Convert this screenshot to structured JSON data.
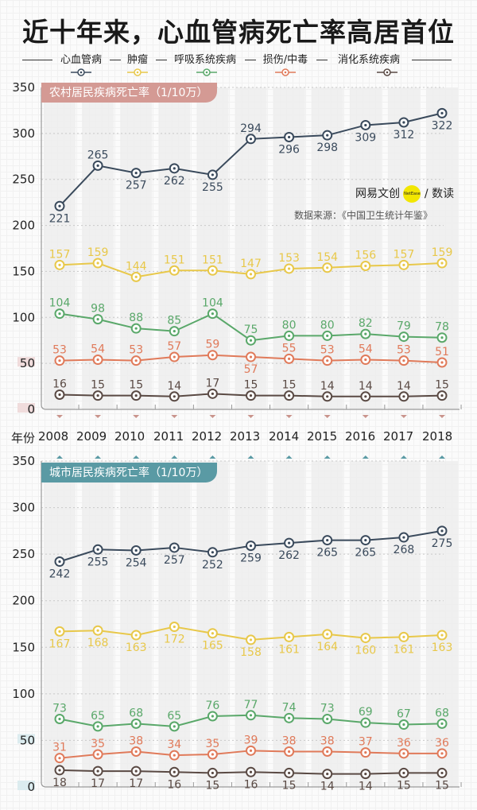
{
  "title": "近十年来，心血管病死亡率高居首位",
  "legend": [
    {
      "label": "心血管病",
      "color": "#3a4a5c"
    },
    {
      "label": "肿瘤",
      "color": "#e8c84a"
    },
    {
      "label": "呼吸系统疾病",
      "color": "#5aa86a"
    },
    {
      "label": "损伤/中毒",
      "color": "#e07a5a"
    },
    {
      "label": "消化系统疾病",
      "color": "#5a4a44"
    }
  ],
  "year_axis": {
    "label": "年份",
    "years": [
      "2008",
      "2009",
      "2010",
      "2011",
      "2012",
      "2013",
      "2014",
      "2015",
      "2016",
      "2017",
      "2018"
    ]
  },
  "credit": {
    "brand": "网易文创",
    "logo_text": "NetEase",
    "section": "/ 数读"
  },
  "source": "数据来源：《中国卫生统计年鉴》",
  "chart_data": [
    {
      "type": "line",
      "title": "农村居民疾病死亡率（1/10万）",
      "title_color": "#d49a94",
      "x": [
        "2008",
        "2009",
        "2010",
        "2011",
        "2012",
        "2013",
        "2014",
        "2015",
        "2016",
        "2017",
        "2018"
      ],
      "xlabel": "年份",
      "ylabel": "",
      "ylim": [
        0,
        350
      ],
      "yticks": [
        0,
        50,
        100,
        150,
        200,
        250,
        300,
        350
      ],
      "grid": true,
      "series": [
        {
          "name": "心血管病",
          "color": "#3a4a5c",
          "values": [
            221,
            265,
            257,
            262,
            255,
            294,
            296,
            298,
            309,
            312,
            322
          ],
          "label_pos": [
            "below",
            "above",
            "below",
            "below",
            "below",
            "above",
            "below",
            "below",
            "below",
            "below",
            "below"
          ]
        },
        {
          "name": "肿瘤",
          "color": "#e8c84a",
          "values": [
            157,
            159,
            144,
            151,
            151,
            147,
            153,
            154,
            156,
            157,
            159
          ],
          "label_pos": [
            "above",
            "above",
            "above",
            "above",
            "above",
            "above",
            "above",
            "above",
            "above",
            "above",
            "above"
          ]
        },
        {
          "name": "呼吸系统疾病",
          "color": "#5aa86a",
          "values": [
            104,
            98,
            88,
            85,
            104,
            75,
            80,
            80,
            82,
            79,
            78
          ],
          "label_pos": [
            "above",
            "above",
            "above",
            "above",
            "above",
            "above",
            "above",
            "above",
            "above",
            "above",
            "above"
          ]
        },
        {
          "name": "损伤/中毒",
          "color": "#e07a5a",
          "values": [
            53,
            54,
            53,
            57,
            59,
            57,
            55,
            53,
            54,
            53,
            51
          ],
          "label_pos": [
            "above",
            "above",
            "above",
            "above",
            "above",
            "below",
            "above",
            "above",
            "above",
            "above",
            "above"
          ]
        },
        {
          "name": "消化系统疾病",
          "color": "#5a4a44",
          "values": [
            16,
            15,
            15,
            14,
            17,
            15,
            15,
            14,
            14,
            14,
            15
          ],
          "label_pos": [
            "above",
            "above",
            "above",
            "above",
            "above",
            "above",
            "above",
            "above",
            "above",
            "above",
            "above"
          ]
        }
      ]
    },
    {
      "type": "line",
      "title": "城市居民疾病死亡率（1/10万）",
      "title_color": "#5a9aa4",
      "x": [
        "2008",
        "2009",
        "2010",
        "2011",
        "2012",
        "2013",
        "2014",
        "2015",
        "2016",
        "2017",
        "2018"
      ],
      "xlabel": "年份",
      "ylabel": "",
      "ylim": [
        0,
        350
      ],
      "yticks": [
        0,
        50,
        100,
        150,
        200,
        250,
        300,
        350
      ],
      "grid": true,
      "series": [
        {
          "name": "心血管病",
          "color": "#3a4a5c",
          "values": [
            242,
            255,
            254,
            257,
            252,
            259,
            262,
            265,
            265,
            268,
            275
          ],
          "label_pos": [
            "below",
            "below",
            "below",
            "below",
            "below",
            "below",
            "below",
            "below",
            "below",
            "below",
            "below"
          ]
        },
        {
          "name": "肿瘤",
          "color": "#e8c84a",
          "values": [
            167,
            168,
            163,
            172,
            165,
            158,
            161,
            164,
            160,
            161,
            163
          ],
          "label_pos": [
            "below",
            "below",
            "below",
            "below",
            "below",
            "below",
            "below",
            "below",
            "below",
            "below",
            "below"
          ]
        },
        {
          "name": "呼吸系统疾病",
          "color": "#5aa86a",
          "values": [
            73,
            65,
            68,
            65,
            76,
            77,
            74,
            73,
            69,
            67,
            68
          ],
          "label_pos": [
            "above",
            "above",
            "above",
            "above",
            "above",
            "above",
            "above",
            "above",
            "above",
            "above",
            "above"
          ]
        },
        {
          "name": "损伤/中毒",
          "color": "#e07a5a",
          "values": [
            31,
            35,
            38,
            34,
            35,
            39,
            38,
            38,
            37,
            36,
            36
          ],
          "label_pos": [
            "above",
            "above",
            "above",
            "above",
            "above",
            "above",
            "above",
            "above",
            "above",
            "above",
            "above"
          ]
        },
        {
          "name": "消化系统疾病",
          "color": "#5a4a44",
          "values": [
            18,
            17,
            17,
            16,
            15,
            16,
            15,
            14,
            14,
            15,
            15
          ],
          "label_pos": [
            "below",
            "below",
            "below",
            "below",
            "below",
            "below",
            "below",
            "below",
            "below",
            "below",
            "below"
          ]
        }
      ]
    }
  ]
}
